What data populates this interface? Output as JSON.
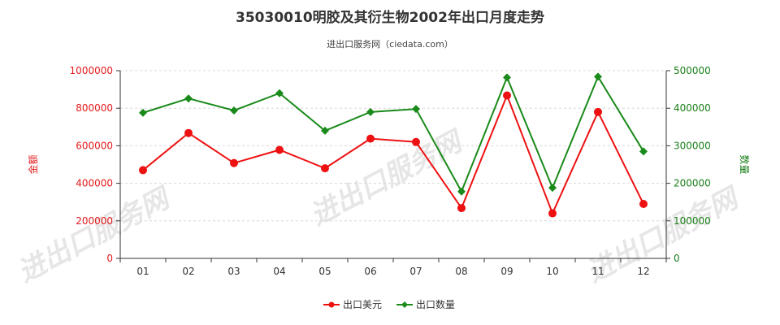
{
  "title": "35030010明胶及其衍生物2002年出口月度走势",
  "subtitle": "进出口服务网（ciedata.com）",
  "watermark": "进出口服务网",
  "colors": {
    "left_axis": "#e41a1c",
    "right_axis": "#1a7f1a",
    "series_usd": "#ee1111",
    "series_qty": "#1a8a1a",
    "axis_line": "#333333"
  },
  "chart_data": {
    "type": "line",
    "title": "35030010明胶及其衍生物2002年出口月度走势",
    "categories": [
      "01",
      "02",
      "03",
      "04",
      "05",
      "06",
      "07",
      "08",
      "09",
      "10",
      "11",
      "12"
    ],
    "y_left": {
      "label": "金额",
      "ylim": [
        0,
        1000000
      ],
      "ticks": [
        "0",
        "200000",
        "400000",
        "600000",
        "800000",
        "1000000"
      ]
    },
    "y_right": {
      "label": "数量",
      "ylim": [
        0,
        500000
      ],
      "ticks": [
        "0",
        "100000",
        "200000",
        "300000",
        "400000",
        "500000"
      ]
    },
    "series": [
      {
        "name": "出口美元",
        "axis": "left",
        "values": [
          470000,
          668000,
          508000,
          578000,
          480000,
          638000,
          620000,
          268000,
          868000,
          240000,
          780000,
          290000
        ]
      },
      {
        "name": "出口数量",
        "axis": "right",
        "values": [
          388000,
          426000,
          394000,
          440000,
          340000,
          390000,
          398000,
          178000,
          482000,
          188000,
          484000,
          285000
        ]
      }
    ],
    "grid": true,
    "legend": "bottom-center"
  }
}
